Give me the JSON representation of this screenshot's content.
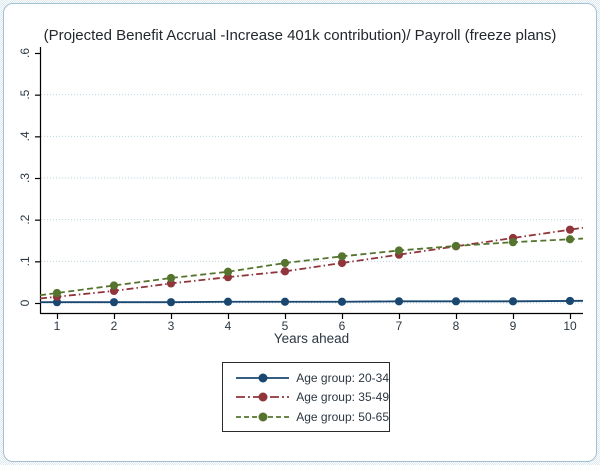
{
  "chart_data": {
    "type": "line",
    "title": "(Projected Benefit Accrual -Increase 401k contribution)/ Payroll (freeze plans)",
    "xlabel": "Years ahead",
    "ylabel": "",
    "x": [
      1,
      2,
      3,
      4,
      5,
      6,
      7,
      8,
      9,
      10
    ],
    "x_ticks": [
      1,
      2,
      3,
      4,
      5,
      6,
      7,
      8,
      9,
      10
    ],
    "y_ticks": [
      0,
      0.1,
      0.2,
      0.3,
      0.4,
      0.5,
      0.6
    ],
    "y_tick_labels": [
      "0",
      ".1",
      ".2",
      ".3",
      ".4",
      ".5",
      ".6"
    ],
    "ylim": [
      0,
      0.6
    ],
    "xlim": [
      1,
      10
    ],
    "grid": true,
    "grid_ticks": [
      0,
      0.1,
      0.2,
      0.3,
      0.4,
      0.5
    ],
    "grid_color": "#b9d5e0",
    "axis_color": "#000000",
    "legend_position": "bottom-center",
    "series": [
      {
        "name": "Age group: 20-34",
        "color": "#1a476f",
        "dash": "solid",
        "marker": "circle",
        "values": [
          0.002,
          0.002,
          0.002,
          0.003,
          0.003,
          0.003,
          0.004,
          0.004,
          0.004,
          0.005
        ]
      },
      {
        "name": "Age group: 35-49",
        "color": "#90353b",
        "dash": "dash-dot",
        "marker": "circle",
        "values": [
          0.015,
          0.029,
          0.047,
          0.062,
          0.076,
          0.096,
          0.116,
          0.136,
          0.156,
          0.176
        ]
      },
      {
        "name": "Age group: 50-65",
        "color": "#55752f",
        "dash": "dash",
        "marker": "circle",
        "values": [
          0.024,
          0.042,
          0.06,
          0.075,
          0.096,
          0.112,
          0.126,
          0.137,
          0.146,
          0.153
        ]
      }
    ]
  }
}
